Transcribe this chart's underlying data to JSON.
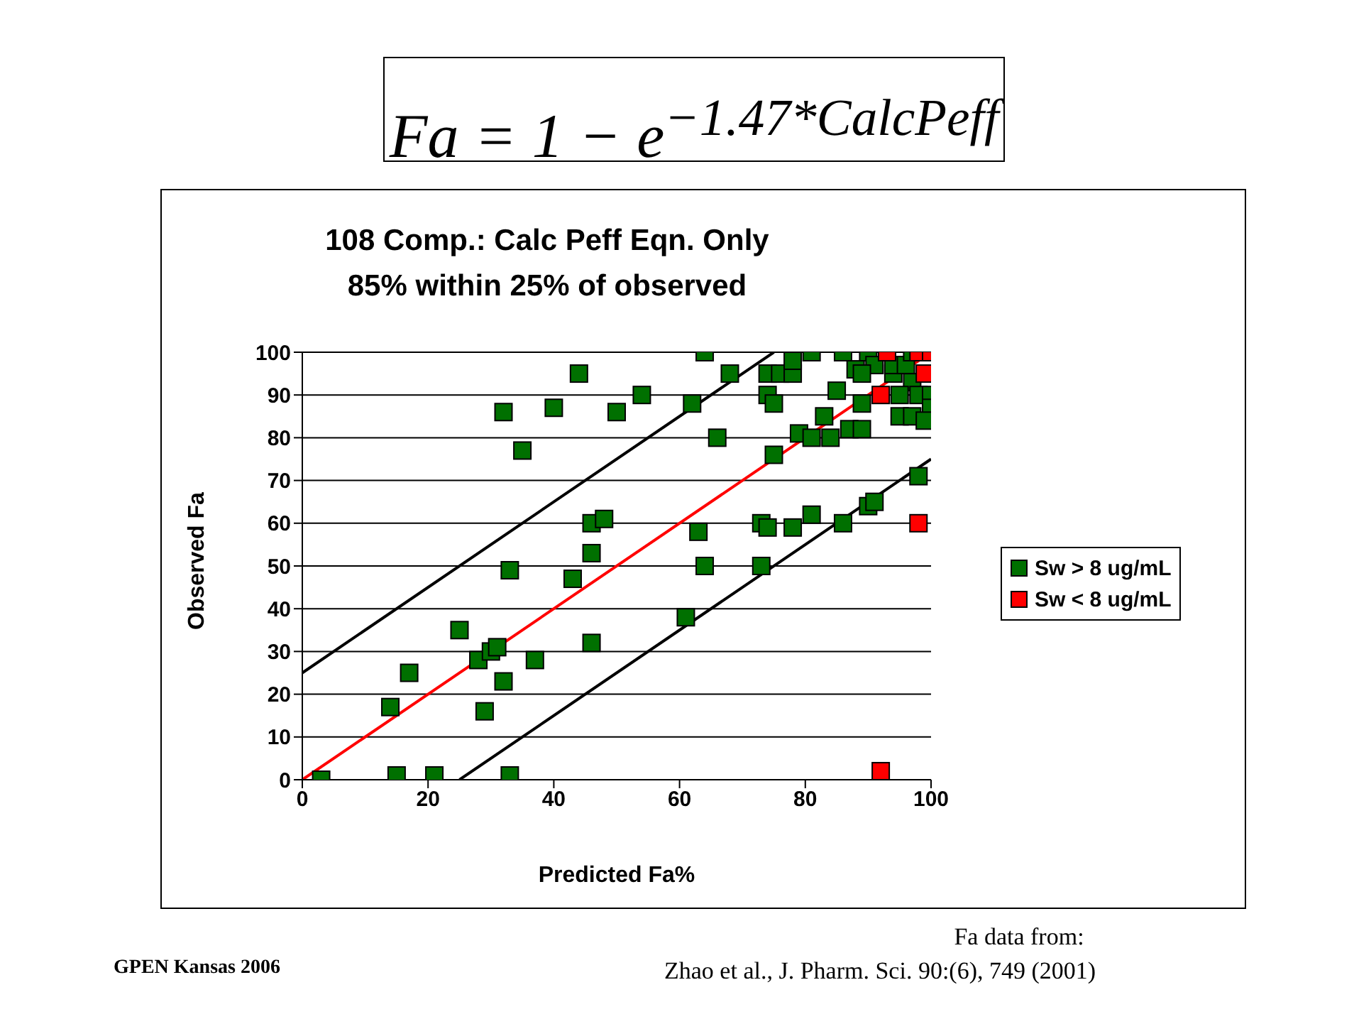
{
  "chart_data": {
    "type": "scatter",
    "title": "108 Comp.: Calc Peff Eqn. Only\n85% within 25% of observed",
    "xlabel": "Predicted Fa%",
    "ylabel": "Observed Fa",
    "xlim": [
      0,
      100
    ],
    "xticks": [
      0,
      20,
      40,
      60,
      80,
      100
    ],
    "ylim": [
      0,
      100
    ],
    "yticks": [
      0,
      10,
      20,
      30,
      40,
      50,
      60,
      70,
      80,
      90,
      100
    ],
    "grid": "y",
    "legend": "right",
    "marker": "square",
    "annotations": [
      "Fa = 1 − e$^{−1.47*CalcPeff}$",
      "GPEN Kansas 2006",
      "Fa data from:",
      "Zhao et al., J. Pharm. Sci. 90:(6), 749 (2001)"
    ],
    "series": [
      {
        "type": "line",
        "marker": "none",
        "color": "#000000",
        "x": [
          0,
          75
        ],
        "values": [
          25,
          100
        ]
      },
      {
        "type": "line",
        "marker": "none",
        "color": "#000000",
        "x": [
          25,
          100
        ],
        "values": [
          0,
          75
        ]
      },
      {
        "type": "line",
        "marker": "none",
        "color": "#ff0000",
        "x": [
          0,
          100
        ],
        "values": [
          0,
          100
        ]
      },
      {
        "type": "scatter",
        "name": "Sw > 8 ug/mL",
        "color": "#007000",
        "x": [
          3,
          15,
          21,
          33,
          14,
          17,
          25,
          28,
          30,
          31,
          32,
          29,
          37,
          46,
          33,
          43,
          46,
          46,
          48,
          44,
          32,
          40,
          35,
          50,
          64,
          54,
          62,
          68,
          66,
          75,
          74,
          76,
          78,
          78,
          74,
          75,
          79,
          81,
          84,
          83,
          85,
          87,
          89,
          81,
          86,
          90,
          89,
          63,
          64,
          73,
          61,
          81,
          73,
          74,
          78,
          86,
          90,
          91,
          98,
          88,
          97,
          95,
          98,
          100,
          95,
          97,
          100,
          99,
          94,
          91,
          94,
          96,
          89,
          97
        ],
        "values": [
          0,
          1,
          1,
          1,
          17,
          25,
          35,
          28,
          30,
          31,
          23,
          16,
          28,
          32,
          49,
          47,
          53,
          60,
          61,
          95,
          86,
          87,
          77,
          86,
          100,
          90,
          88,
          95,
          80,
          76,
          95,
          95,
          95,
          98,
          90,
          88,
          81,
          80,
          80,
          85,
          91,
          82,
          82,
          100,
          100,
          100,
          88,
          58,
          50,
          50,
          38,
          62,
          60,
          59,
          59,
          60,
          64,
          65,
          71,
          96,
          93,
          90,
          90,
          90,
          85,
          85,
          87,
          84,
          95,
          97,
          97,
          97,
          95,
          100
        ]
      },
      {
        "type": "scatter",
        "name": "Sw < 8 ug/mL",
        "color": "#ff0000",
        "x": [
          93,
          98,
          100,
          99,
          92,
          98,
          92
        ],
        "values": [
          100,
          100,
          100,
          95,
          90,
          60,
          2
        ]
      }
    ]
  }
}
